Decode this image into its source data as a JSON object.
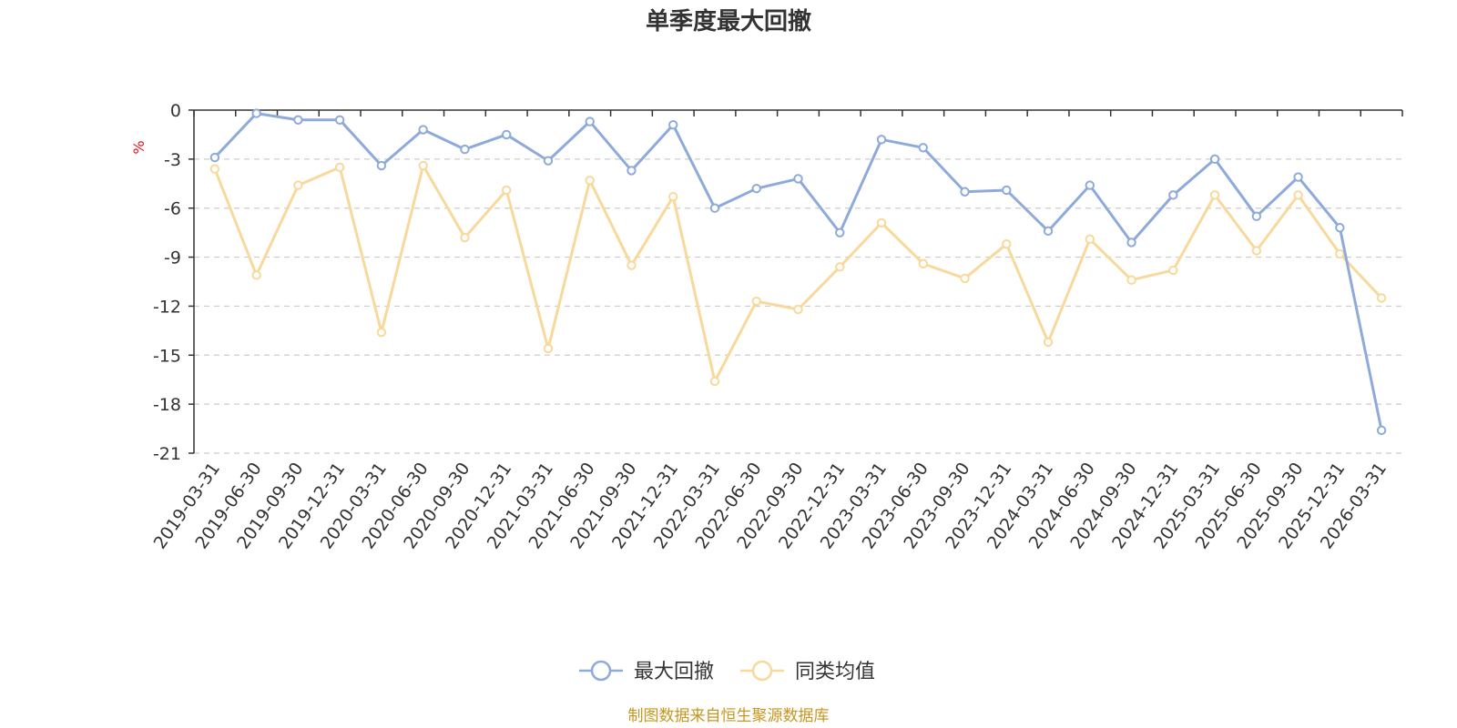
{
  "chart_data": {
    "type": "line",
    "title": "单季度最大回撤",
    "ylabel": "%",
    "ylim": [
      -21,
      0
    ],
    "yticks": [
      0,
      -3,
      -6,
      -9,
      -12,
      -15,
      -18,
      -21
    ],
    "grid": true,
    "legend_position": "bottom",
    "categories": [
      "2019-03-31",
      "2019-06-30",
      "2019-09-30",
      "2019-12-31",
      "2020-03-31",
      "2020-06-30",
      "2020-09-30",
      "2020-12-31",
      "2021-03-31",
      "2021-06-30",
      "2021-09-30",
      "2021-12-31",
      "2022-03-31",
      "2022-06-30",
      "2022-09-30",
      "2022-12-31",
      "2023-03-31",
      "2023-06-30",
      "2023-09-30",
      "2023-12-31",
      "2024-03-31",
      "2024-06-30",
      "2024-09-30",
      "2024-12-31",
      "2025-03-31",
      "2025-06-30",
      "2025-09-30",
      "2025-12-31",
      "2026-03-31"
    ],
    "series": [
      {
        "name": "最大回撤",
        "color": "#8eaadb",
        "values": [
          -2.9,
          -0.2,
          -0.6,
          -0.6,
          -3.4,
          -1.2,
          -2.4,
          -1.5,
          -3.1,
          -0.7,
          -3.7,
          -0.9,
          -6.0,
          -4.8,
          -4.2,
          -7.5,
          -1.8,
          -2.3,
          -5.0,
          -4.9,
          -7.4,
          -4.6,
          -8.1,
          -5.2,
          -3.0,
          -6.5,
          -4.1,
          -7.2,
          -19.6
        ]
      },
      {
        "name": "同类均值",
        "color": "#f8d99b",
        "values": [
          -3.6,
          -10.1,
          -4.6,
          -3.5,
          -13.6,
          -3.4,
          -7.8,
          -4.9,
          -14.6,
          -4.3,
          -9.5,
          -5.3,
          -16.6,
          -11.7,
          -12.2,
          -9.6,
          -6.9,
          -9.4,
          -10.3,
          -8.2,
          -14.2,
          -7.9,
          -10.4,
          -9.8,
          -5.2,
          -8.6,
          -5.2,
          -8.8,
          -11.5
        ]
      }
    ],
    "source": "制图数据来自恒生聚源数据库"
  }
}
